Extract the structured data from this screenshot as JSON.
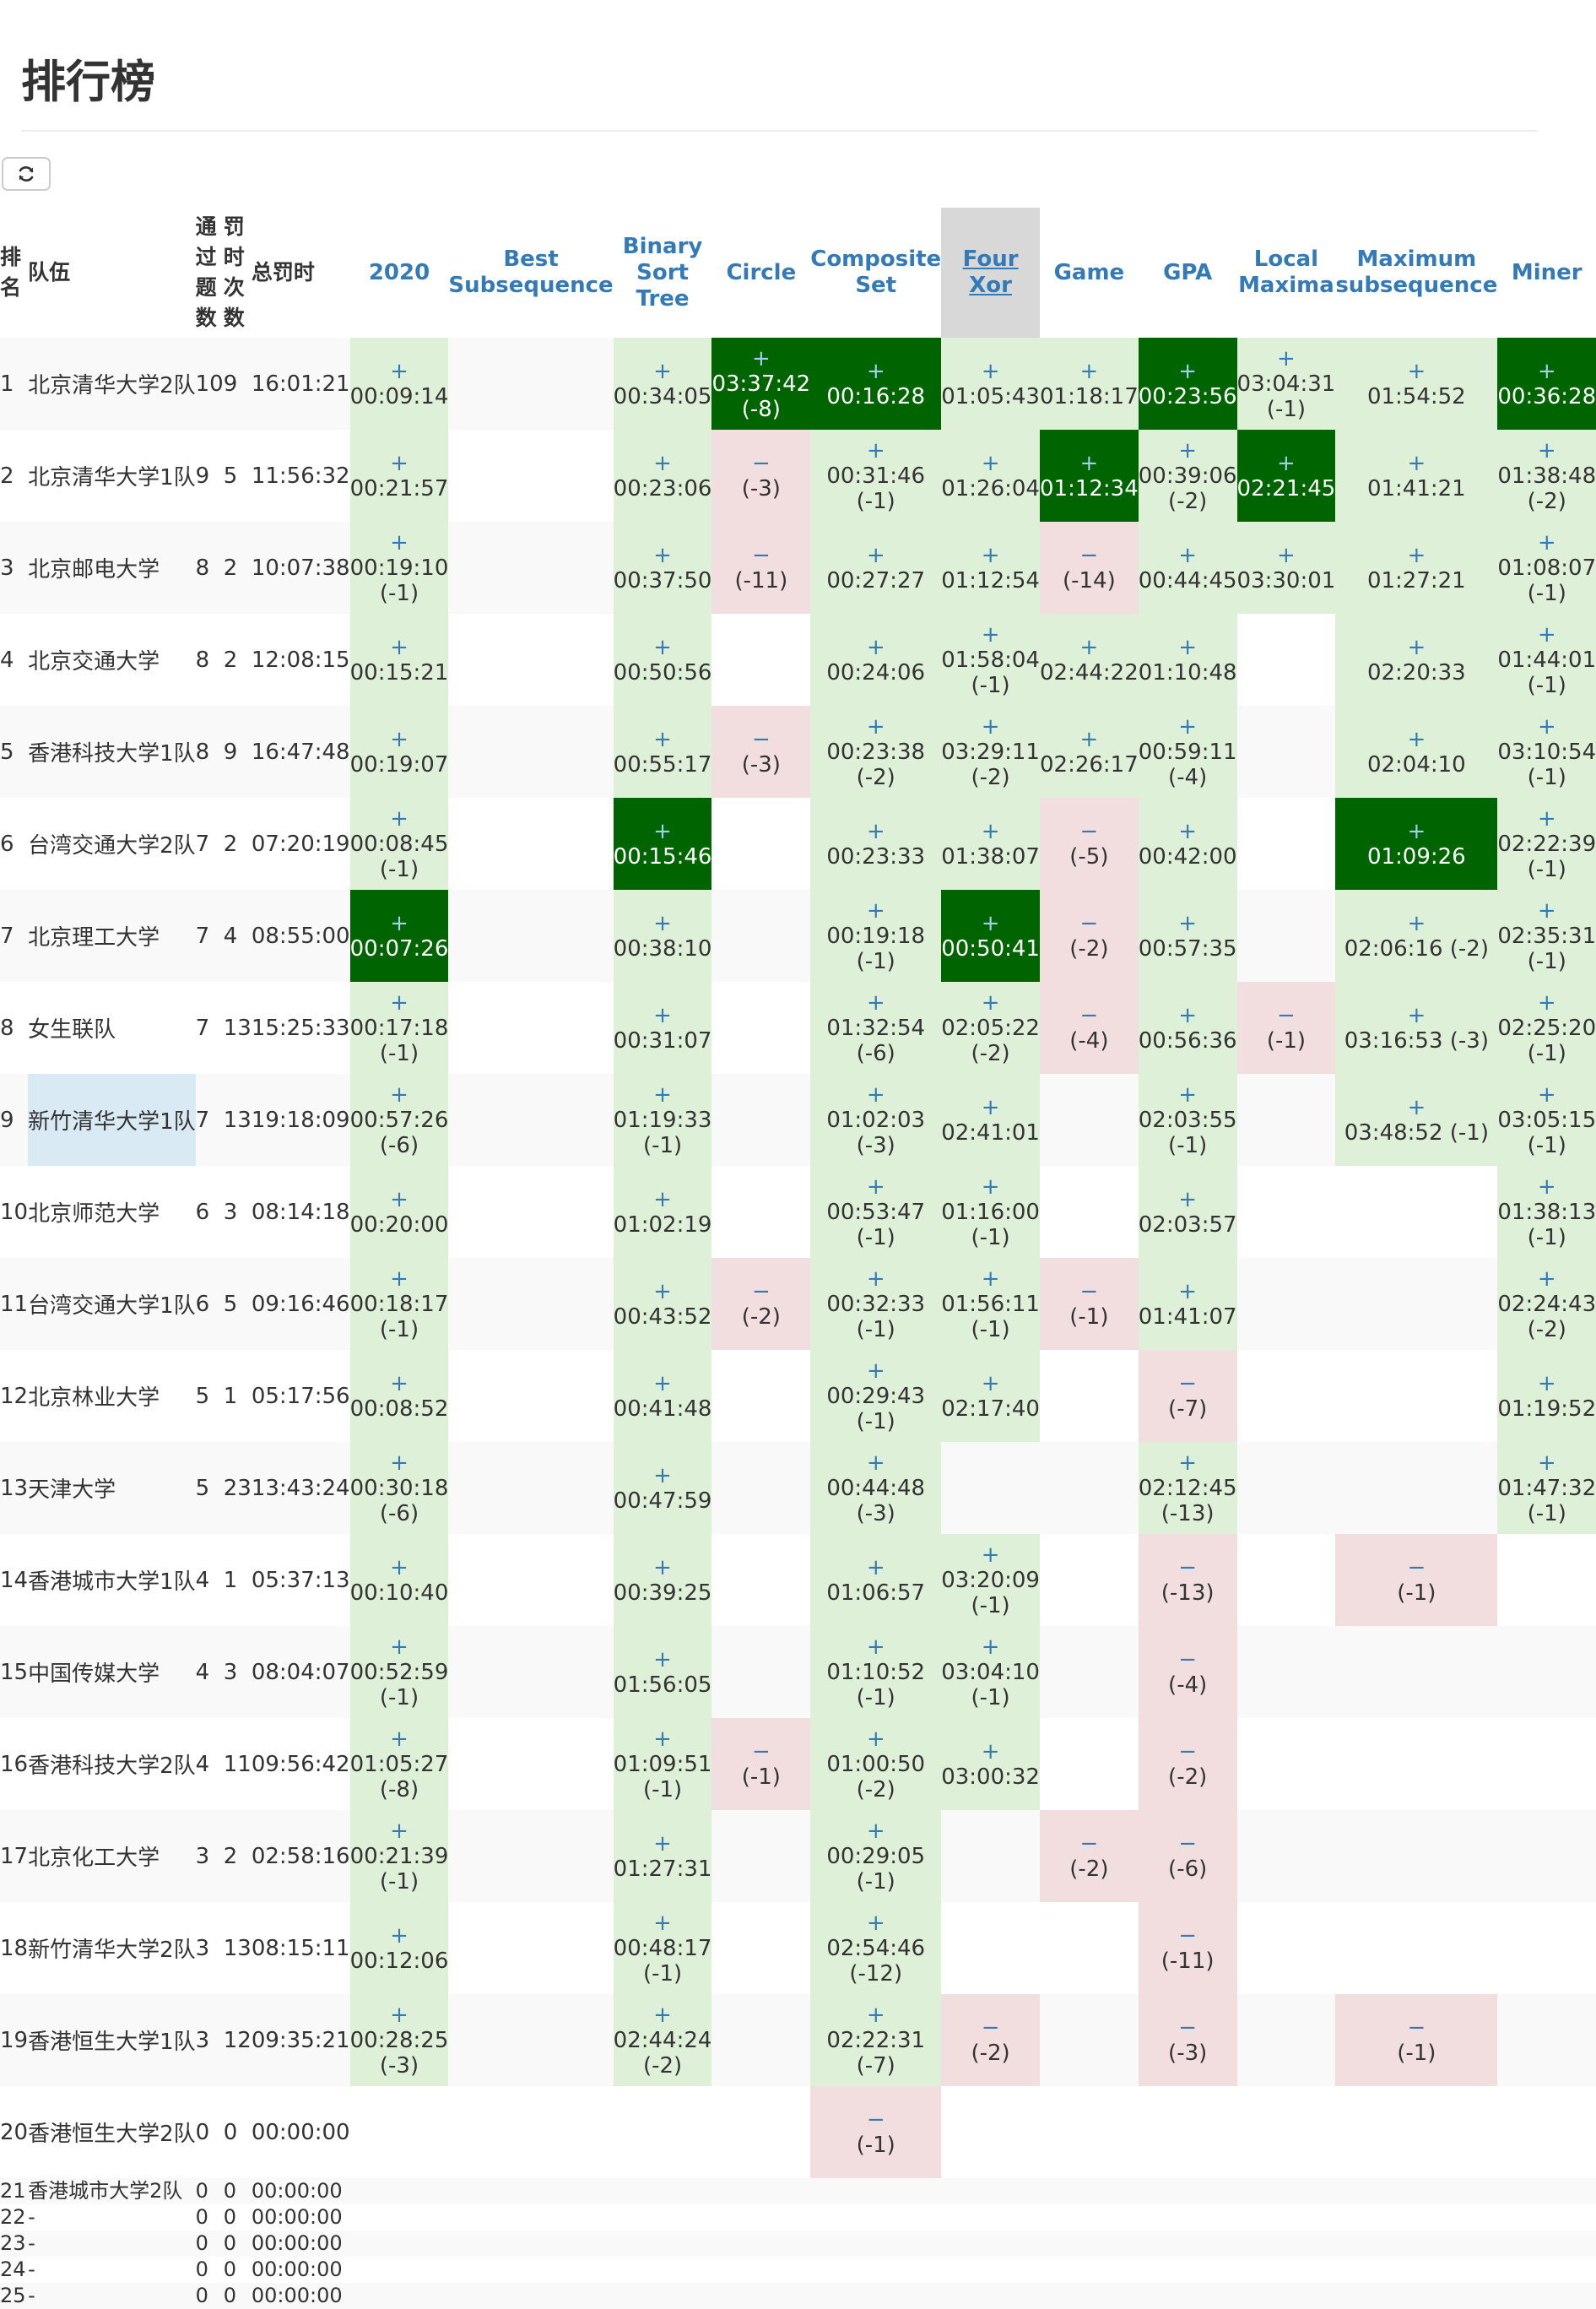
{
  "page": {
    "title": "排行榜"
  },
  "refresh_icon": "refresh-icon",
  "colors": {
    "accepted": "#dff0d8",
    "wrong": "#f2dede",
    "first_blood": "#006400",
    "link": "#337ab7"
  },
  "headers": {
    "rank": [
      "排",
      "名"
    ],
    "team": "队伍",
    "solved": [
      "通",
      "过",
      "题",
      "数"
    ],
    "penalty_count": [
      "罚",
      "时",
      "次",
      "数"
    ],
    "total_time": "总罚时"
  },
  "problems": [
    {
      "lines": [
        "2020"
      ]
    },
    {
      "lines": [
        "Best",
        "Subsequence"
      ]
    },
    {
      "lines": [
        "Binary",
        "Sort",
        "Tree"
      ]
    },
    {
      "lines": [
        "Circle"
      ]
    },
    {
      "lines": [
        "Composite",
        "Set"
      ]
    },
    {
      "lines": [
        "Four Xor"
      ],
      "highlight": true
    },
    {
      "lines": [
        "Game"
      ]
    },
    {
      "lines": [
        "GPA"
      ]
    },
    {
      "lines": [
        "Local",
        "Maxima"
      ]
    },
    {
      "lines": [
        "Maximum",
        "subsequence"
      ]
    },
    {
      "lines": [
        "Miner"
      ]
    }
  ],
  "rows": [
    {
      "rank": "1",
      "team": "北京清华大学2队",
      "solved": "10",
      "penalty_count": "9",
      "total": "16:01:21",
      "cells": [
        {
          "s": "ac",
          "t": "00:09:14"
        },
        null,
        {
          "s": "ac",
          "t": "00:34:05"
        },
        {
          "s": "fb",
          "t": "03:37:42",
          "a": "(-8)"
        },
        {
          "s": "fb",
          "t": "00:16:28"
        },
        {
          "s": "ac",
          "t": "01:05:43"
        },
        {
          "s": "ac",
          "t": "01:18:17"
        },
        {
          "s": "fb",
          "t": "00:23:56"
        },
        {
          "s": "ac",
          "t": "03:04:31",
          "a": "(-1)"
        },
        {
          "s": "ac",
          "t": "01:54:52"
        },
        {
          "s": "fb",
          "t": "00:36:28"
        }
      ]
    },
    {
      "rank": "2",
      "team": "北京清华大学1队",
      "solved": "9",
      "penalty_count": "5",
      "total": "11:56:32",
      "cells": [
        {
          "s": "ac",
          "t": "00:21:57"
        },
        null,
        {
          "s": "ac",
          "t": "00:23:06"
        },
        {
          "s": "wa",
          "a": "(-3)"
        },
        {
          "s": "ac",
          "t": "00:31:46",
          "a": "(-1)"
        },
        {
          "s": "ac",
          "t": "01:26:04"
        },
        {
          "s": "fb",
          "t": "01:12:34"
        },
        {
          "s": "ac",
          "t": "00:39:06",
          "a": "(-2)"
        },
        {
          "s": "fb",
          "t": "02:21:45"
        },
        {
          "s": "ac",
          "t": "01:41:21"
        },
        {
          "s": "ac",
          "t": "01:38:48",
          "a": "(-2)"
        }
      ]
    },
    {
      "rank": "3",
      "team": "北京邮电大学",
      "solved": "8",
      "penalty_count": "2",
      "total": "10:07:38",
      "cells": [
        {
          "s": "ac",
          "t": "00:19:10",
          "a": "(-1)"
        },
        null,
        {
          "s": "ac",
          "t": "00:37:50"
        },
        {
          "s": "wa",
          "a": "(-11)"
        },
        {
          "s": "ac",
          "t": "00:27:27"
        },
        {
          "s": "ac",
          "t": "01:12:54"
        },
        {
          "s": "wa",
          "a": "(-14)"
        },
        {
          "s": "ac",
          "t": "00:44:45"
        },
        {
          "s": "ac",
          "t": "03:30:01"
        },
        {
          "s": "ac",
          "t": "01:27:21"
        },
        {
          "s": "ac",
          "t": "01:08:07",
          "a": "(-1)"
        }
      ]
    },
    {
      "rank": "4",
      "team": "北京交通大学",
      "solved": "8",
      "penalty_count": "2",
      "total": "12:08:15",
      "cells": [
        {
          "s": "ac",
          "t": "00:15:21"
        },
        null,
        {
          "s": "ac",
          "t": "00:50:56"
        },
        null,
        {
          "s": "ac",
          "t": "00:24:06"
        },
        {
          "s": "ac",
          "t": "01:58:04",
          "a": "(-1)"
        },
        {
          "s": "ac",
          "t": "02:44:22"
        },
        {
          "s": "ac",
          "t": "01:10:48"
        },
        null,
        {
          "s": "ac",
          "t": "02:20:33"
        },
        {
          "s": "ac",
          "t": "01:44:01",
          "a": "(-1)"
        }
      ]
    },
    {
      "rank": "5",
      "team": "香港科技大学1队",
      "solved": "8",
      "penalty_count": "9",
      "total": "16:47:48",
      "cells": [
        {
          "s": "ac",
          "t": "00:19:07"
        },
        null,
        {
          "s": "ac",
          "t": "00:55:17"
        },
        {
          "s": "wa",
          "a": "(-3)"
        },
        {
          "s": "ac",
          "t": "00:23:38",
          "a": "(-2)"
        },
        {
          "s": "ac",
          "t": "03:29:11",
          "a": "(-2)"
        },
        {
          "s": "ac",
          "t": "02:26:17"
        },
        {
          "s": "ac",
          "t": "00:59:11",
          "a": "(-4)"
        },
        null,
        {
          "s": "ac",
          "t": "02:04:10"
        },
        {
          "s": "ac",
          "t": "03:10:54",
          "a": "(-1)"
        }
      ]
    },
    {
      "rank": "6",
      "team": "台湾交通大学2队",
      "solved": "7",
      "penalty_count": "2",
      "total": "07:20:19",
      "cells": [
        {
          "s": "ac",
          "t": "00:08:45",
          "a": "(-1)"
        },
        null,
        {
          "s": "fb",
          "t": "00:15:46"
        },
        null,
        {
          "s": "ac",
          "t": "00:23:33"
        },
        {
          "s": "ac",
          "t": "01:38:07"
        },
        {
          "s": "wa",
          "a": "(-5)"
        },
        {
          "s": "ac",
          "t": "00:42:00"
        },
        null,
        {
          "s": "fb",
          "t": "01:09:26"
        },
        {
          "s": "ac",
          "t": "02:22:39",
          "a": "(-1)"
        }
      ]
    },
    {
      "rank": "7",
      "team": "北京理工大学",
      "solved": "7",
      "penalty_count": "4",
      "total": "08:55:00",
      "cells": [
        {
          "s": "fb",
          "t": "00:07:26"
        },
        null,
        {
          "s": "ac",
          "t": "00:38:10"
        },
        null,
        {
          "s": "ac",
          "t": "00:19:18",
          "a": "(-1)"
        },
        {
          "s": "fb",
          "t": "00:50:41"
        },
        {
          "s": "wa",
          "a": "(-2)"
        },
        {
          "s": "ac",
          "t": "00:57:35"
        },
        null,
        {
          "s": "ac",
          "t": "02:06:16 (-2)"
        },
        {
          "s": "ac",
          "t": "02:35:31",
          "a": "(-1)"
        }
      ]
    },
    {
      "rank": "8",
      "team": "女生联队",
      "solved": "7",
      "penalty_count": "13",
      "total": "15:25:33",
      "cells": [
        {
          "s": "ac",
          "t": "00:17:18",
          "a": "(-1)"
        },
        null,
        {
          "s": "ac",
          "t": "00:31:07"
        },
        null,
        {
          "s": "ac",
          "t": "01:32:54",
          "a": "(-6)"
        },
        {
          "s": "ac",
          "t": "02:05:22",
          "a": "(-2)"
        },
        {
          "s": "wa",
          "a": "(-4)"
        },
        {
          "s": "ac",
          "t": "00:56:36"
        },
        {
          "s": "wa",
          "a": "(-1)"
        },
        {
          "s": "ac",
          "t": "03:16:53 (-3)"
        },
        {
          "s": "ac",
          "t": "02:25:20",
          "a": "(-1)"
        }
      ]
    },
    {
      "rank": "9",
      "team": "新竹清华大学1队",
      "solved": "7",
      "penalty_count": "13",
      "total": "19:18:09",
      "selected": true,
      "cells": [
        {
          "s": "ac",
          "t": "00:57:26",
          "a": "(-6)"
        },
        null,
        {
          "s": "ac",
          "t": "01:19:33",
          "a": "(-1)"
        },
        null,
        {
          "s": "ac",
          "t": "01:02:03",
          "a": "(-3)"
        },
        {
          "s": "ac",
          "t": "02:41:01"
        },
        null,
        {
          "s": "ac",
          "t": "02:03:55",
          "a": "(-1)"
        },
        null,
        {
          "s": "ac",
          "t": "03:48:52 (-1)"
        },
        {
          "s": "ac",
          "t": "03:05:15",
          "a": "(-1)"
        }
      ]
    },
    {
      "rank": "10",
      "team": "北京师范大学",
      "solved": "6",
      "penalty_count": "3",
      "total": "08:14:18",
      "cells": [
        {
          "s": "ac",
          "t": "00:20:00"
        },
        null,
        {
          "s": "ac",
          "t": "01:02:19"
        },
        null,
        {
          "s": "ac",
          "t": "00:53:47",
          "a": "(-1)"
        },
        {
          "s": "ac",
          "t": "01:16:00",
          "a": "(-1)"
        },
        null,
        {
          "s": "ac",
          "t": "02:03:57"
        },
        null,
        null,
        {
          "s": "ac",
          "t": "01:38:13",
          "a": "(-1)"
        }
      ]
    },
    {
      "rank": "11",
      "team": "台湾交通大学1队",
      "solved": "6",
      "penalty_count": "5",
      "total": "09:16:46",
      "cells": [
        {
          "s": "ac",
          "t": "00:18:17",
          "a": "(-1)"
        },
        null,
        {
          "s": "ac",
          "t": "00:43:52"
        },
        {
          "s": "wa",
          "a": "(-2)"
        },
        {
          "s": "ac",
          "t": "00:32:33",
          "a": "(-1)"
        },
        {
          "s": "ac",
          "t": "01:56:11",
          "a": "(-1)"
        },
        {
          "s": "wa",
          "a": "(-1)"
        },
        {
          "s": "ac",
          "t": "01:41:07"
        },
        null,
        null,
        {
          "s": "ac",
          "t": "02:24:43",
          "a": "(-2)"
        }
      ]
    },
    {
      "rank": "12",
      "team": "北京林业大学",
      "solved": "5",
      "penalty_count": "1",
      "total": "05:17:56",
      "cells": [
        {
          "s": "ac",
          "t": "00:08:52"
        },
        null,
        {
          "s": "ac",
          "t": "00:41:48"
        },
        null,
        {
          "s": "ac",
          "t": "00:29:43",
          "a": "(-1)"
        },
        {
          "s": "ac",
          "t": "02:17:40"
        },
        null,
        {
          "s": "wa",
          "a": "(-7)"
        },
        null,
        null,
        {
          "s": "ac",
          "t": "01:19:52"
        }
      ]
    },
    {
      "rank": "13",
      "team": "天津大学",
      "solved": "5",
      "penalty_count": "23",
      "total": "13:43:24",
      "cells": [
        {
          "s": "ac",
          "t": "00:30:18",
          "a": "(-6)"
        },
        null,
        {
          "s": "ac",
          "t": "00:47:59"
        },
        null,
        {
          "s": "ac",
          "t": "00:44:48",
          "a": "(-3)"
        },
        null,
        null,
        {
          "s": "ac",
          "t": "02:12:45",
          "a": "(-13)"
        },
        null,
        null,
        {
          "s": "ac",
          "t": "01:47:32",
          "a": "(-1)"
        }
      ]
    },
    {
      "rank": "14",
      "team": "香港城市大学1队",
      "solved": "4",
      "penalty_count": "1",
      "total": "05:37:13",
      "cells": [
        {
          "s": "ac",
          "t": "00:10:40"
        },
        null,
        {
          "s": "ac",
          "t": "00:39:25"
        },
        null,
        {
          "s": "ac",
          "t": "01:06:57"
        },
        {
          "s": "ac",
          "t": "03:20:09",
          "a": "(-1)"
        },
        null,
        {
          "s": "wa",
          "a": "(-13)"
        },
        null,
        {
          "s": "wa",
          "a": "(-1)"
        },
        null
      ]
    },
    {
      "rank": "15",
      "team": "中国传媒大学",
      "solved": "4",
      "penalty_count": "3",
      "total": "08:04:07",
      "cells": [
        {
          "s": "ac",
          "t": "00:52:59",
          "a": "(-1)"
        },
        null,
        {
          "s": "ac",
          "t": "01:56:05"
        },
        null,
        {
          "s": "ac",
          "t": "01:10:52",
          "a": "(-1)"
        },
        {
          "s": "ac",
          "t": "03:04:10",
          "a": "(-1)"
        },
        null,
        {
          "s": "wa",
          "a": "(-4)"
        },
        null,
        null,
        null
      ]
    },
    {
      "rank": "16",
      "team": "香港科技大学2队",
      "solved": "4",
      "penalty_count": "11",
      "total": "09:56:42",
      "cells": [
        {
          "s": "ac",
          "t": "01:05:27",
          "a": "(-8)"
        },
        null,
        {
          "s": "ac",
          "t": "01:09:51",
          "a": "(-1)"
        },
        {
          "s": "wa",
          "a": "(-1)"
        },
        {
          "s": "ac",
          "t": "01:00:50",
          "a": "(-2)"
        },
        {
          "s": "ac",
          "t": "03:00:32"
        },
        null,
        {
          "s": "wa",
          "a": "(-2)"
        },
        null,
        null,
        null
      ]
    },
    {
      "rank": "17",
      "team": "北京化工大学",
      "solved": "3",
      "penalty_count": "2",
      "total": "02:58:16",
      "cells": [
        {
          "s": "ac",
          "t": "00:21:39",
          "a": "(-1)"
        },
        null,
        {
          "s": "ac",
          "t": "01:27:31"
        },
        null,
        {
          "s": "ac",
          "t": "00:29:05",
          "a": "(-1)"
        },
        null,
        {
          "s": "wa",
          "a": "(-2)"
        },
        {
          "s": "wa",
          "a": "(-6)"
        },
        null,
        null,
        null
      ]
    },
    {
      "rank": "18",
      "team": "新竹清华大学2队",
      "solved": "3",
      "penalty_count": "13",
      "total": "08:15:11",
      "cells": [
        {
          "s": "ac",
          "t": "00:12:06"
        },
        null,
        {
          "s": "ac",
          "t": "00:48:17",
          "a": "(-1)"
        },
        null,
        {
          "s": "ac",
          "t": "02:54:46",
          "a": "(-12)"
        },
        null,
        null,
        {
          "s": "wa",
          "a": "(-11)"
        },
        null,
        null,
        null
      ]
    },
    {
      "rank": "19",
      "team": "香港恒生大学1队",
      "solved": "3",
      "penalty_count": "12",
      "total": "09:35:21",
      "cells": [
        {
          "s": "ac",
          "t": "00:28:25",
          "a": "(-3)"
        },
        null,
        {
          "s": "ac",
          "t": "02:44:24",
          "a": "(-2)"
        },
        null,
        {
          "s": "ac",
          "t": "02:22:31",
          "a": "(-7)"
        },
        {
          "s": "wa",
          "a": "(-2)"
        },
        null,
        {
          "s": "wa",
          "a": "(-3)"
        },
        null,
        {
          "s": "wa",
          "a": "(-1)"
        },
        null
      ]
    },
    {
      "rank": "20",
      "team": "香港恒生大学2队",
      "solved": "0",
      "penalty_count": "0",
      "total": "00:00:00",
      "cells": [
        null,
        null,
        null,
        null,
        {
          "s": "wa",
          "a": "(-1)"
        },
        null,
        null,
        null,
        null,
        null,
        null
      ]
    },
    {
      "rank": "21",
      "team": "香港城市大学2队",
      "solved": "0",
      "penalty_count": "0",
      "total": "00:00:00",
      "small": true,
      "cells": []
    },
    {
      "rank": "22",
      "team": "-",
      "solved": "0",
      "penalty_count": "0",
      "total": "00:00:00",
      "small": true,
      "cells": []
    },
    {
      "rank": "23",
      "team": "-",
      "solved": "0",
      "penalty_count": "0",
      "total": "00:00:00",
      "small": true,
      "cells": []
    },
    {
      "rank": "24",
      "team": "-",
      "solved": "0",
      "penalty_count": "0",
      "total": "00:00:00",
      "small": true,
      "cells": []
    },
    {
      "rank": "25",
      "team": "-",
      "solved": "0",
      "penalty_count": "0",
      "total": "00:00:00",
      "small": true,
      "cells": []
    }
  ]
}
